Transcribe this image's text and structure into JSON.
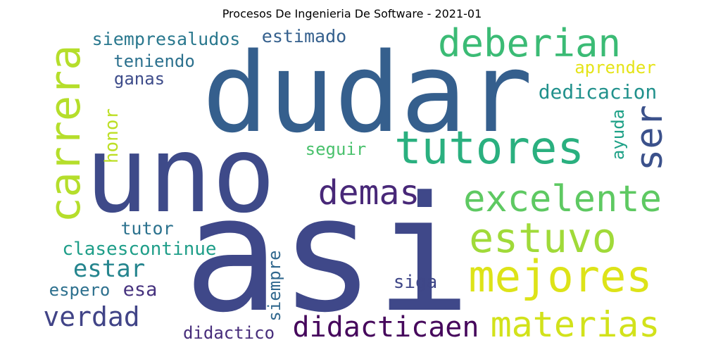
{
  "title": "Procesos De Ingenieria De Software - 2021-01",
  "colors": {
    "background": "#ffffff",
    "title": "#000000"
  },
  "words": [
    {
      "text": "dudar",
      "color": "#355f8d"
    },
    {
      "text": "asi",
      "color": "#3f4889"
    },
    {
      "text": "uno",
      "color": "#3e4a89"
    },
    {
      "text": "carrera",
      "color": "#b5de2b"
    },
    {
      "text": "tutores",
      "color": "#2ab07f"
    },
    {
      "text": "deberian",
      "color": "#3bbb75"
    },
    {
      "text": "ser",
      "color": "#3b518b"
    },
    {
      "text": "demas",
      "color": "#482878"
    },
    {
      "text": "excelente",
      "color": "#5ec962"
    },
    {
      "text": "estuvo",
      "color": "#a0da39"
    },
    {
      "text": "mejores",
      "color": "#dde318"
    },
    {
      "text": "materias",
      "color": "#d2e21b"
    },
    {
      "text": "didacticaen",
      "color": "#46085c"
    },
    {
      "text": "verdad",
      "color": "#414487"
    },
    {
      "text": "estar",
      "color": "#25858e"
    },
    {
      "text": "clasescontinue",
      "color": "#1f9e89"
    },
    {
      "text": "tutor",
      "color": "#2c728e"
    },
    {
      "text": "espero",
      "color": "#2d708e"
    },
    {
      "text": "esa",
      "color": "#46327e"
    },
    {
      "text": "didactico",
      "color": "#472d7b"
    },
    {
      "text": "siempre",
      "color": "#31688e"
    },
    {
      "text": "siga",
      "color": "#3f4788"
    },
    {
      "text": "seguir",
      "color": "#4ac16d"
    },
    {
      "text": "honor",
      "color": "#bddf26"
    },
    {
      "text": "ganas",
      "color": "#3e4c8a"
    },
    {
      "text": "teniendo",
      "color": "#2c718e"
    },
    {
      "text": "siempresaludos",
      "color": "#2a788e"
    },
    {
      "text": "estimado",
      "color": "#35608d"
    },
    {
      "text": "aprender",
      "color": "#e5e419"
    },
    {
      "text": "dedicacion",
      "color": "#21918c"
    },
    {
      "text": "ayuda",
      "color": "#1fa187"
    }
  ]
}
